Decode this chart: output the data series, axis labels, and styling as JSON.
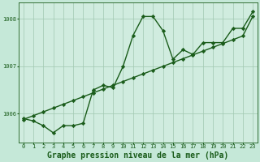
{
  "title": "Graphe pression niveau de la mer (hPa)",
  "xlabel": "Graphe pression niveau de la mer (hPa)",
  "bg_color": "#c5e8d8",
  "line_color": "#1a5c1a",
  "trend_color": "#1a5c1a",
  "grid_color": "#a0c8b0",
  "x": [
    0,
    1,
    2,
    3,
    4,
    5,
    6,
    7,
    8,
    9,
    10,
    11,
    12,
    13,
    14,
    15,
    16,
    17,
    18,
    19,
    20,
    21,
    22,
    23
  ],
  "y_main": [
    1005.9,
    1005.85,
    1005.75,
    1005.6,
    1005.75,
    1005.75,
    1005.8,
    1006.5,
    1006.6,
    1006.55,
    1007.0,
    1007.65,
    1008.05,
    1008.05,
    1007.75,
    1007.15,
    1007.35,
    1007.25,
    1007.5,
    1007.5,
    1007.5,
    1007.8,
    1007.8,
    1008.15
  ],
  "y_trend": [
    1005.88,
    1005.96,
    1006.04,
    1006.12,
    1006.2,
    1006.28,
    1006.36,
    1006.44,
    1006.52,
    1006.6,
    1006.68,
    1006.76,
    1006.84,
    1006.92,
    1007.0,
    1007.08,
    1007.16,
    1007.24,
    1007.32,
    1007.4,
    1007.48,
    1007.56,
    1007.64,
    1008.05
  ],
  "yticks": [
    1006,
    1007,
    1008
  ],
  "ylim": [
    1005.4,
    1008.35
  ],
  "xticks": [
    0,
    1,
    2,
    3,
    4,
    5,
    6,
    7,
    8,
    9,
    10,
    11,
    12,
    13,
    14,
    15,
    16,
    17,
    18,
    19,
    20,
    21,
    22,
    23
  ],
  "marker": "D",
  "markersize": 2.2,
  "linewidth": 1.0,
  "title_fontsize": 7.0,
  "tick_fontsize": 5.0,
  "axis_bg": "#d0ecdf"
}
